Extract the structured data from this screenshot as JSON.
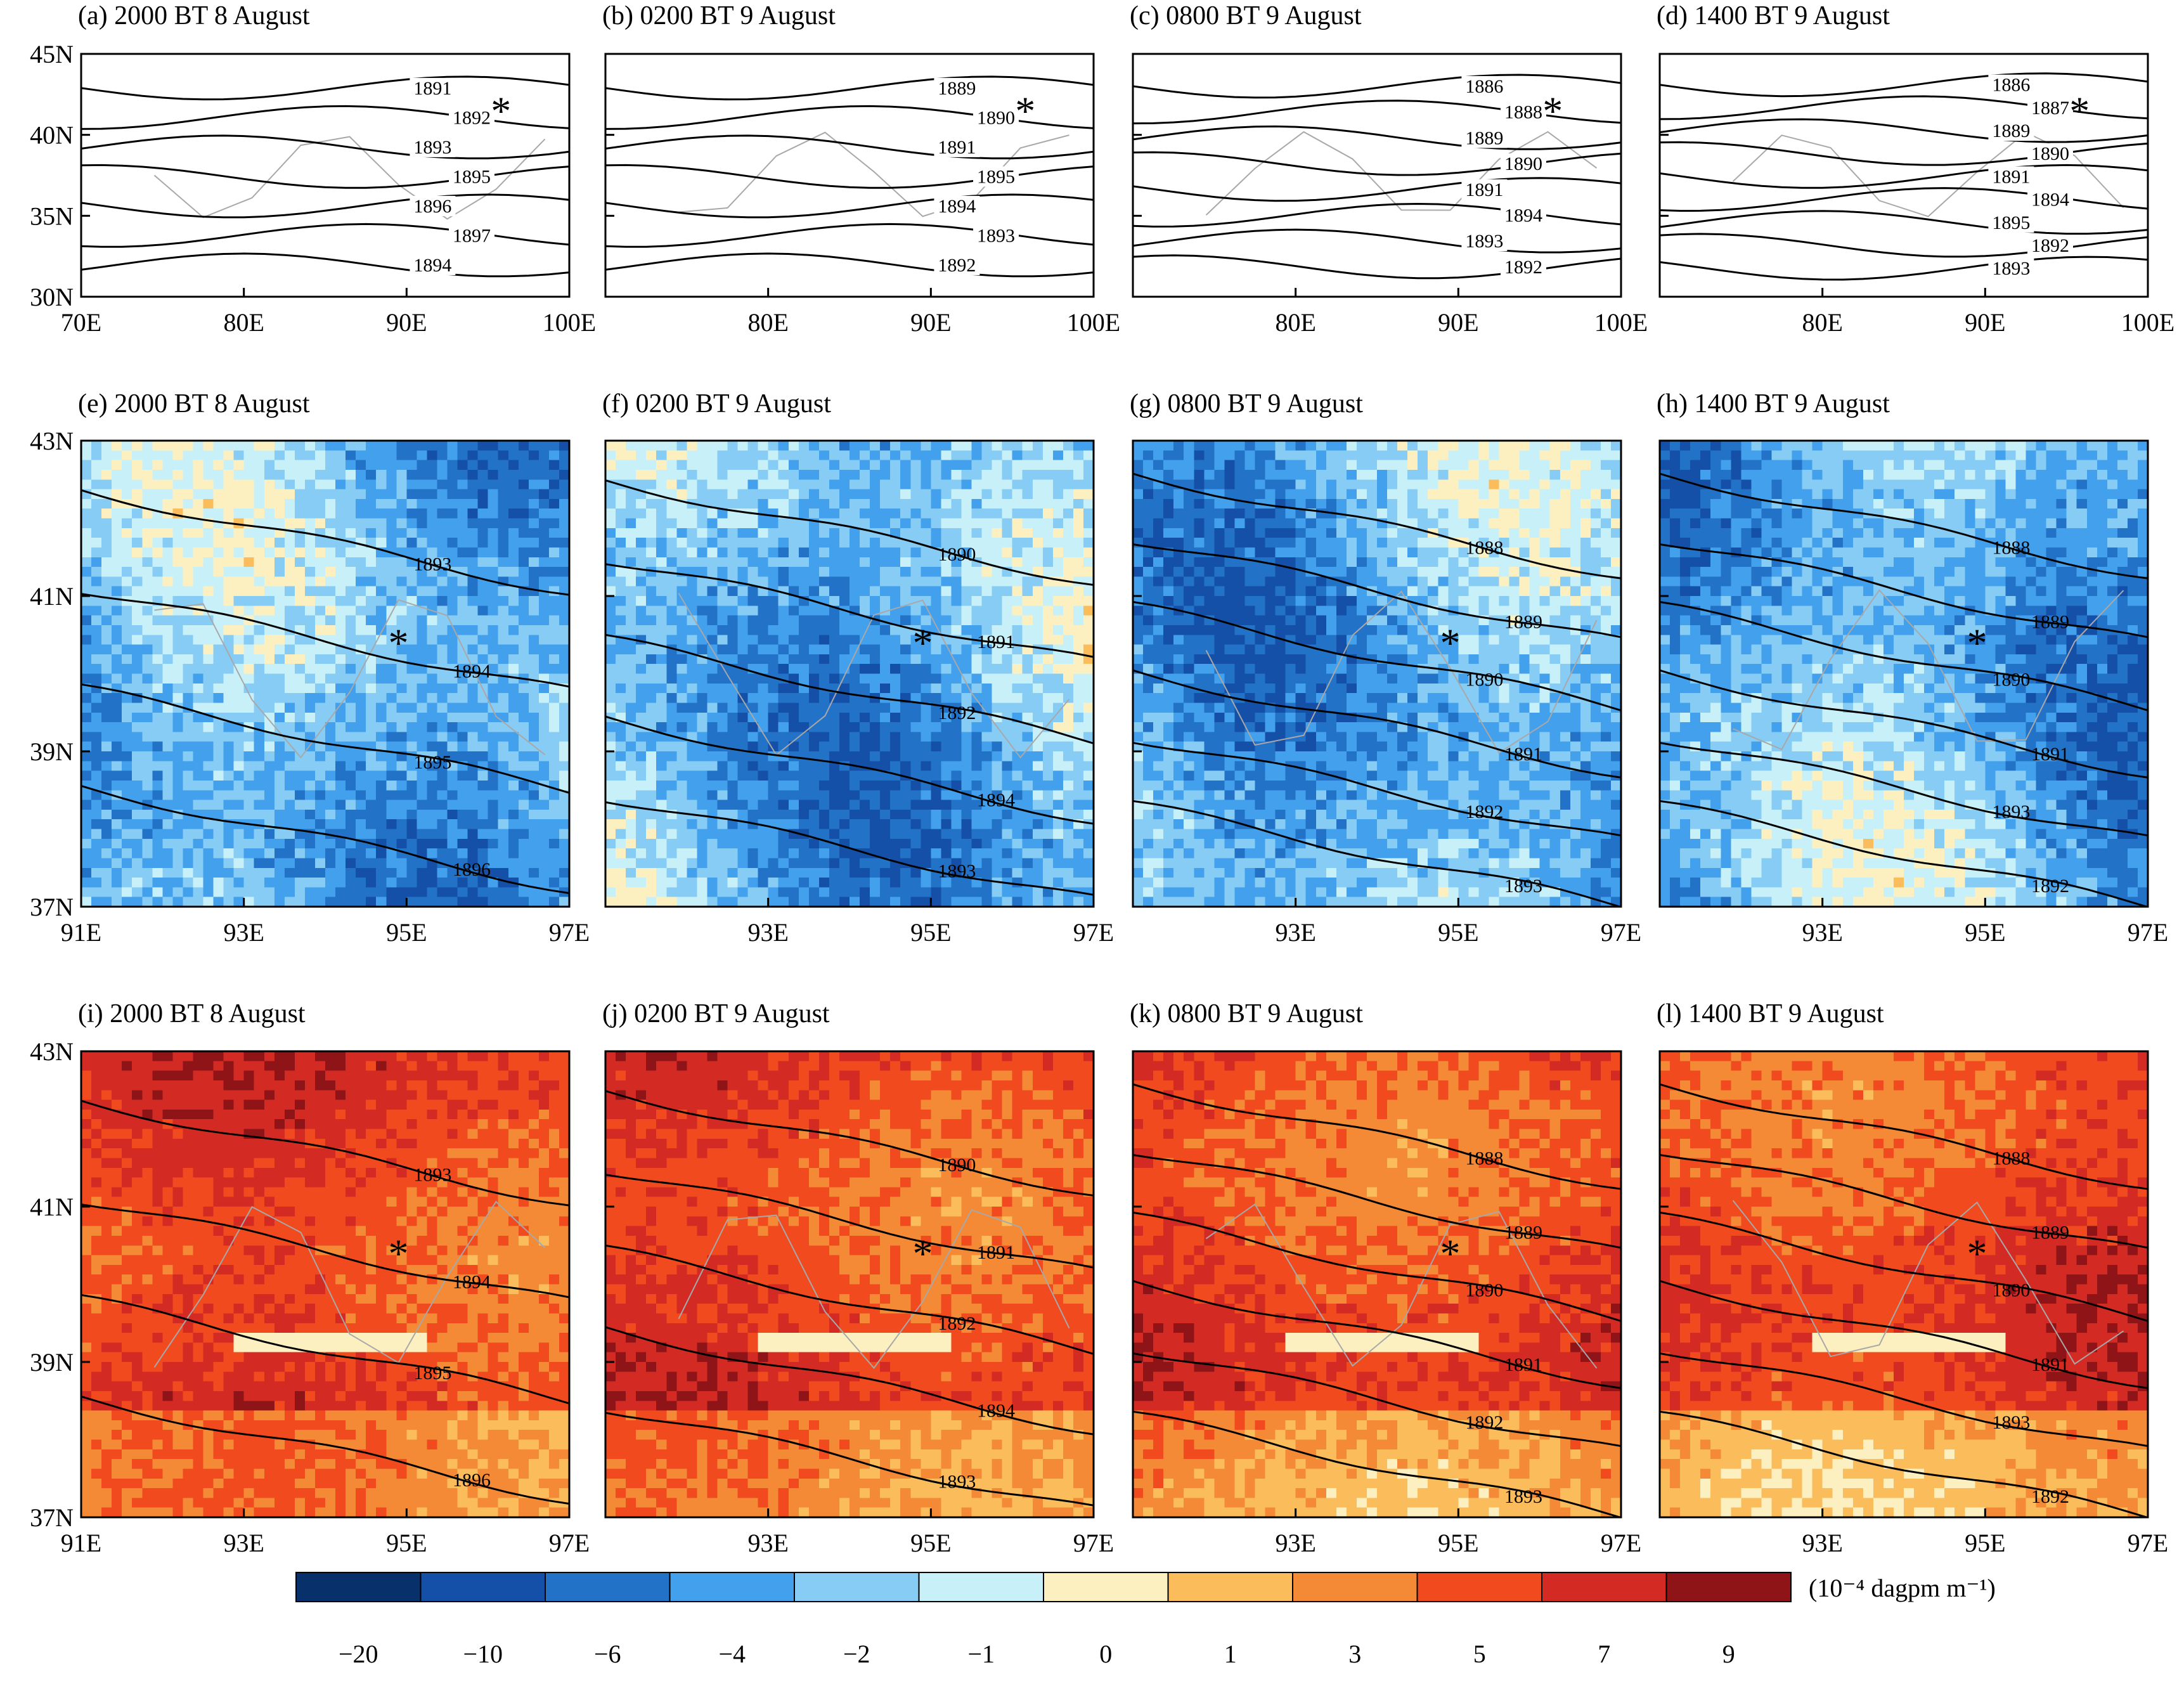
{
  "chart_data": [
    {
      "panel": "a",
      "row": 0,
      "col": 0,
      "type": "contour",
      "title": "(a) 2000 BT 8 August",
      "xlim": [
        70,
        100
      ],
      "ylim": [
        30,
        45
      ],
      "xticks": [
        "70E",
        "80E",
        "90E",
        "100E"
      ],
      "yticks": [
        "30N",
        "35N",
        "40N",
        "45N"
      ],
      "contour_labels": [
        "1891",
        "1892",
        "1893",
        "1895",
        "1896",
        "1897",
        "1894"
      ],
      "marker": {
        "symbol": "*",
        "lon": 95.8,
        "lat": 41.5
      }
    },
    {
      "panel": "b",
      "row": 0,
      "col": 1,
      "type": "contour",
      "title": "(b) 0200 BT 9 August",
      "xlim": [
        70,
        100
      ],
      "ylim": [
        30,
        45
      ],
      "xticks": [
        "80E",
        "90E",
        "100E"
      ],
      "yticks": [],
      "contour_labels": [
        "1889",
        "1890",
        "1891",
        "1895",
        "1894",
        "1893",
        "1892"
      ],
      "marker": {
        "symbol": "*",
        "lon": 95.8,
        "lat": 41.5
      }
    },
    {
      "panel": "c",
      "row": 0,
      "col": 2,
      "type": "contour",
      "title": "(c) 0800 BT 9 August",
      "xlim": [
        70,
        100
      ],
      "ylim": [
        30,
        45
      ],
      "xticks": [
        "80E",
        "90E",
        "100E"
      ],
      "yticks": [],
      "contour_labels": [
        "1886",
        "1888",
        "1889",
        "1890",
        "1891",
        "1894",
        "1893",
        "1892"
      ],
      "marker": {
        "symbol": "*",
        "lon": 95.8,
        "lat": 41.5
      }
    },
    {
      "panel": "d",
      "row": 0,
      "col": 3,
      "type": "contour",
      "title": "(d) 1400 BT 9 August",
      "xlim": [
        70,
        100
      ],
      "ylim": [
        30,
        45
      ],
      "xticks": [
        "80E",
        "90E",
        "100E"
      ],
      "yticks": [],
      "contour_labels": [
        "1886",
        "1887",
        "1889",
        "1890",
        "1891",
        "1894",
        "1895",
        "1892",
        "1893"
      ],
      "marker": {
        "symbol": "*",
        "lon": 95.8,
        "lat": 41.5
      }
    },
    {
      "panel": "e",
      "row": 1,
      "col": 0,
      "type": "heatmap",
      "title": "(e) 2000 BT 8 August",
      "xlim": [
        91,
        97
      ],
      "ylim": [
        37,
        43
      ],
      "xticks": [
        "91E",
        "93E",
        "95E",
        "97E"
      ],
      "yticks": [
        "37N",
        "39N",
        "41N",
        "43N"
      ],
      "contour_labels": [
        "1893",
        "1894",
        "1895",
        "1896"
      ],
      "marker": {
        "symbol": "*",
        "lon": 94.9,
        "lat": 40.4
      }
    },
    {
      "panel": "f",
      "row": 1,
      "col": 1,
      "type": "heatmap",
      "title": "(f) 0200 BT 9 August",
      "xlim": [
        91,
        97
      ],
      "ylim": [
        37,
        43
      ],
      "xticks": [
        "93E",
        "95E",
        "97E"
      ],
      "yticks": [],
      "contour_labels": [
        "1890",
        "1891",
        "1892",
        "1894",
        "1893"
      ],
      "marker": {
        "symbol": "*",
        "lon": 94.9,
        "lat": 40.4
      }
    },
    {
      "panel": "g",
      "row": 1,
      "col": 2,
      "type": "heatmap",
      "title": "(g) 0800 BT 9 August",
      "xlim": [
        91,
        97
      ],
      "ylim": [
        37,
        43
      ],
      "xticks": [
        "93E",
        "95E",
        "97E"
      ],
      "yticks": [],
      "contour_labels": [
        "1888",
        "1889",
        "1890",
        "1891",
        "1892",
        "1893"
      ],
      "marker": {
        "symbol": "*",
        "lon": 94.9,
        "lat": 40.4
      }
    },
    {
      "panel": "h",
      "row": 1,
      "col": 3,
      "type": "heatmap",
      "title": "(h) 1400 BT 9 August",
      "xlim": [
        91,
        97
      ],
      "ylim": [
        37,
        43
      ],
      "xticks": [
        "93E",
        "95E",
        "97E"
      ],
      "yticks": [],
      "contour_labels": [
        "1888",
        "1889",
        "1890",
        "1891",
        "1893",
        "1892"
      ],
      "marker": {
        "symbol": "*",
        "lon": 94.9,
        "lat": 40.4
      }
    },
    {
      "panel": "i",
      "row": 2,
      "col": 0,
      "type": "heatmap",
      "title": "(i) 2000 BT 8 August",
      "xlim": [
        91,
        97
      ],
      "ylim": [
        37,
        43
      ],
      "xticks": [
        "91E",
        "93E",
        "95E",
        "97E"
      ],
      "yticks": [
        "37N",
        "39N",
        "41N",
        "43N"
      ],
      "contour_labels": [
        "1893",
        "1894",
        "1895",
        "1896"
      ],
      "marker": {
        "symbol": "*",
        "lon": 94.9,
        "lat": 40.4
      }
    },
    {
      "panel": "j",
      "row": 2,
      "col": 1,
      "type": "heatmap",
      "title": "(j) 0200 BT 9 August",
      "xlim": [
        91,
        97
      ],
      "ylim": [
        37,
        43
      ],
      "xticks": [
        "93E",
        "95E",
        "97E"
      ],
      "yticks": [],
      "contour_labels": [
        "1890",
        "1891",
        "1892",
        "1894",
        "1893"
      ],
      "marker": {
        "symbol": "*",
        "lon": 94.9,
        "lat": 40.4
      }
    },
    {
      "panel": "k",
      "row": 2,
      "col": 2,
      "type": "heatmap",
      "title": "(k) 0800 BT 9 August",
      "xlim": [
        91,
        97
      ],
      "ylim": [
        37,
        43
      ],
      "xticks": [
        "93E",
        "95E",
        "97E"
      ],
      "yticks": [],
      "contour_labels": [
        "1888",
        "1889",
        "1890",
        "1891",
        "1892",
        "1893"
      ],
      "marker": {
        "symbol": "*",
        "lon": 94.9,
        "lat": 40.4
      }
    },
    {
      "panel": "l",
      "row": 2,
      "col": 3,
      "type": "heatmap",
      "title": "(l) 1400 BT 9 August",
      "xlim": [
        91,
        97
      ],
      "ylim": [
        37,
        43
      ],
      "xticks": [
        "93E",
        "95E",
        "97E"
      ],
      "yticks": [],
      "contour_labels": [
        "1888",
        "1889",
        "1890",
        "1891",
        "1893",
        "1892"
      ],
      "marker": {
        "symbol": "*",
        "lon": 94.9,
        "lat": 40.4
      }
    }
  ],
  "colorbar": {
    "labels": [
      "−20",
      "−10",
      "−6",
      "−4",
      "−2",
      "−1",
      "0",
      "1",
      "3",
      "5",
      "7",
      "9"
    ],
    "colors": [
      "#08306b",
      "#1550a8",
      "#2272c8",
      "#42a0ec",
      "#87ccf5",
      "#c8f0f8",
      "#fdf0c0",
      "#fbbd5c",
      "#f48a36",
      "#f04a1e",
      "#d42a24",
      "#8e1418"
    ],
    "unit_text": "(10⁻⁴ dagpm m⁻¹)"
  }
}
